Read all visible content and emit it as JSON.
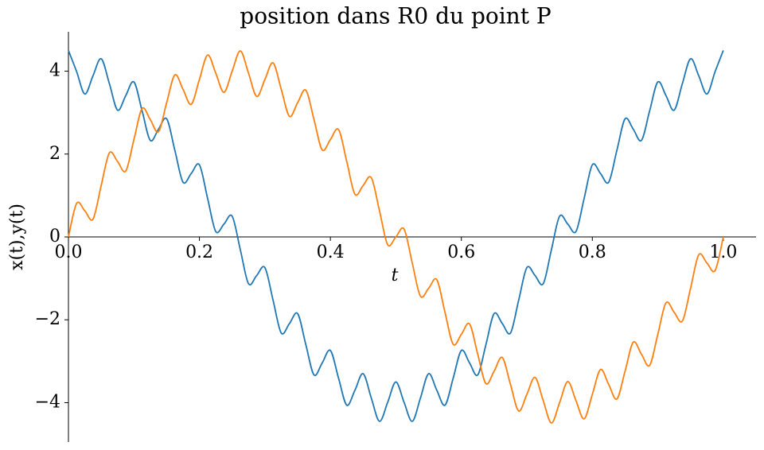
{
  "chart_data": {
    "type": "line",
    "title": "position dans R0 du point P",
    "x_label": "t",
    "y_label": "x(t),y(t)",
    "x": [
      0,
      0.0125,
      0.025,
      0.0375,
      0.05,
      0.0625,
      0.075,
      0.0875,
      0.1,
      0.1125,
      0.125,
      0.1375,
      0.15,
      0.1625,
      0.175,
      0.1875,
      0.2,
      0.2125,
      0.225,
      0.2375,
      0.25,
      0.2625,
      0.275,
      0.2875,
      0.3,
      0.3125,
      0.325,
      0.3375,
      0.35,
      0.3625,
      0.375,
      0.3875,
      0.4,
      0.4125,
      0.425,
      0.4375,
      0.45,
      0.4625,
      0.475,
      0.4875,
      0.5,
      0.5125,
      0.525,
      0.5375,
      0.55,
      0.5625,
      0.575,
      0.5875,
      0.6,
      0.6125,
      0.625,
      0.6375,
      0.65,
      0.6625,
      0.675,
      0.6875,
      0.7,
      0.7125,
      0.725,
      0.7375,
      0.75,
      0.7625,
      0.775,
      0.7875,
      0.8,
      0.8125,
      0.825,
      0.8375,
      0.85,
      0.8625,
      0.875,
      0.8875,
      0.9,
      0.9125,
      0.925,
      0.9375,
      0.95,
      0.9625,
      0.975,
      0.9875,
      1
    ],
    "series": [
      {
        "color": "#1f77b4",
        "values": [
          4.5,
          3.99,
          3.45,
          3.89,
          4.3,
          3.7,
          3.06,
          3.41,
          3.74,
          3.04,
          2.33,
          2.6,
          2.85,
          2.09,
          1.32,
          1.53,
          1.74,
          0.93,
          0.13,
          0.31,
          0.5,
          -0.31,
          -1.13,
          -0.93,
          -0.74,
          -1.53,
          -2.32,
          -2.09,
          -1.85,
          -2.6,
          -3.33,
          -3.04,
          -2.74,
          -3.41,
          -4.06,
          -3.7,
          -3.3,
          -3.89,
          -4.45,
          -3.99,
          -3.5,
          -3.99,
          -4.45,
          -3.89,
          -3.3,
          -3.7,
          -4.06,
          -3.41,
          -2.74,
          -3.04,
          -3.33,
          -2.6,
          -1.85,
          -2.09,
          -2.32,
          -1.53,
          -0.74,
          -0.93,
          -1.13,
          -0.31,
          0.5,
          0.31,
          0.13,
          0.93,
          1.74,
          1.53,
          1.32,
          2.09,
          2.85,
          2.6,
          2.33,
          3.04,
          3.74,
          3.41,
          3.06,
          3.7,
          4.3,
          3.89,
          3.45,
          3.99,
          4.5
        ]
      },
      {
        "color": "#ff7f0e",
        "values": [
          0,
          0.81,
          0.63,
          0.43,
          1.24,
          2.03,
          1.82,
          1.59,
          2.35,
          3.1,
          2.83,
          2.54,
          3.24,
          3.91,
          3.56,
          3.2,
          3.8,
          4.39,
          3.95,
          3.49,
          4,
          4.49,
          3.95,
          3.39,
          3.8,
          4.2,
          3.56,
          2.91,
          3.24,
          3.54,
          2.83,
          2.1,
          2.35,
          2.59,
          1.82,
          1.03,
          1.24,
          1.43,
          0.63,
          -0.19,
          0,
          0.19,
          -0.63,
          -1.43,
          -1.24,
          -1.03,
          -1.82,
          -2.59,
          -2.35,
          -2.1,
          -2.83,
          -3.54,
          -3.24,
          -2.91,
          -3.56,
          -4.2,
          -3.8,
          -3.39,
          -3.95,
          -4.49,
          -4,
          -3.49,
          -3.95,
          -4.39,
          -3.8,
          -3.2,
          -3.56,
          -3.91,
          -3.24,
          -2.54,
          -2.83,
          -3.1,
          -2.35,
          -1.59,
          -1.82,
          -2.03,
          -1.24,
          -0.43,
          -0.63,
          -0.81,
          0
        ]
      }
    ],
    "xlim": [
      0,
      1.05
    ],
    "ylim": [
      -4.95,
      4.95
    ],
    "xticks": [
      {
        "value": 0,
        "label": "0.0"
      },
      {
        "value": 0.2,
        "label": "0.2"
      },
      {
        "value": 0.4,
        "label": "0.4"
      },
      {
        "value": 0.6,
        "label": "0.6"
      },
      {
        "value": 0.8,
        "label": "0.8"
      },
      {
        "value": 1,
        "label": "1.0"
      }
    ],
    "yticks": [
      {
        "value": -4,
        "label": "−4"
      },
      {
        "value": -2,
        "label": "−2"
      },
      0,
      2,
      4
    ]
  }
}
